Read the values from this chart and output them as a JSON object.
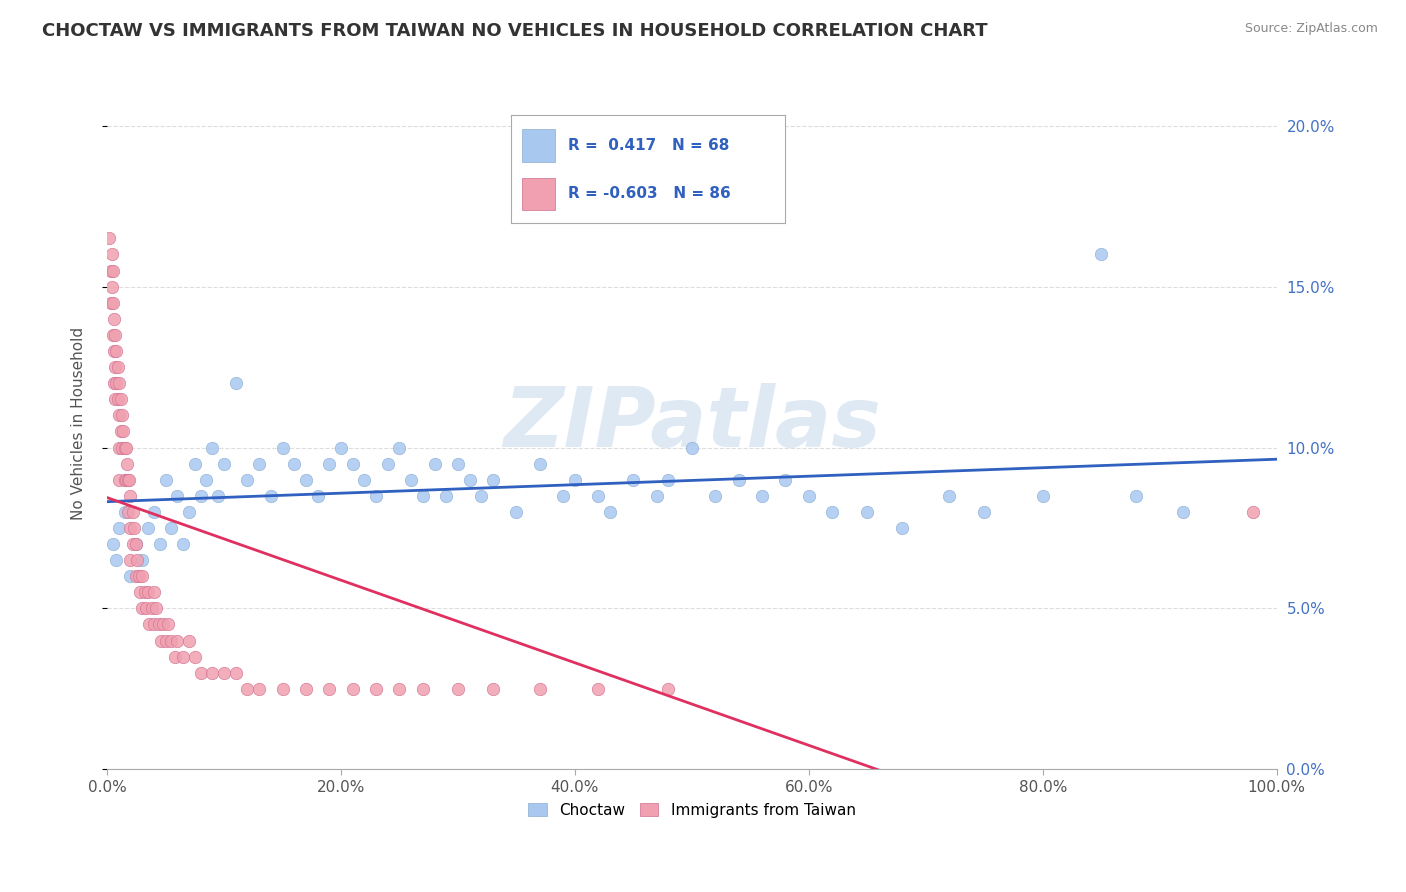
{
  "title": "CHOCTAW VS IMMIGRANTS FROM TAIWAN NO VEHICLES IN HOUSEHOLD CORRELATION CHART",
  "source": "Source: ZipAtlas.com",
  "ylabel": "No Vehicles in Household",
  "xlim": [
    0,
    1.0
  ],
  "ylim": [
    0,
    0.215
  ],
  "xticks": [
    0.0,
    0.2,
    0.4,
    0.6,
    0.8,
    1.0
  ],
  "xticklabels": [
    "0.0%",
    "20.0%",
    "40.0%",
    "60.0%",
    "80.0%",
    "100.0%"
  ],
  "yticks": [
    0.0,
    0.05,
    0.1,
    0.15,
    0.2
  ],
  "yticklabels_right": [
    "0.0%",
    "5.0%",
    "10.0%",
    "15.0%",
    "20.0%"
  ],
  "watermark": "ZIPatlas",
  "choctaw_color": "#A8C8F0",
  "taiwan_color": "#F0A0B0",
  "choctaw_line_color": "#3060C0",
  "taiwan_line_color": "#E03060",
  "choctaw_R": 0.417,
  "choctaw_N": 68,
  "taiwan_R": -0.603,
  "taiwan_N": 86,
  "legend_text1": "R =  0.417   N = 68",
  "legend_text2": "R = -0.603   N = 86",
  "choctaw_scatter_x": [
    0.005,
    0.008,
    0.01,
    0.015,
    0.02,
    0.025,
    0.03,
    0.035,
    0.04,
    0.045,
    0.05,
    0.055,
    0.06,
    0.065,
    0.07,
    0.075,
    0.08,
    0.085,
    0.09,
    0.095,
    0.1,
    0.11,
    0.12,
    0.13,
    0.14,
    0.15,
    0.16,
    0.17,
    0.18,
    0.19,
    0.2,
    0.21,
    0.22,
    0.23,
    0.24,
    0.25,
    0.26,
    0.27,
    0.28,
    0.29,
    0.3,
    0.31,
    0.32,
    0.33,
    0.35,
    0.37,
    0.39,
    0.4,
    0.42,
    0.43,
    0.45,
    0.47,
    0.48,
    0.5,
    0.52,
    0.54,
    0.56,
    0.58,
    0.6,
    0.62,
    0.65,
    0.68,
    0.72,
    0.75,
    0.8,
    0.85,
    0.88,
    0.92
  ],
  "choctaw_scatter_y": [
    0.07,
    0.065,
    0.075,
    0.08,
    0.06,
    0.07,
    0.065,
    0.075,
    0.08,
    0.07,
    0.09,
    0.075,
    0.085,
    0.07,
    0.08,
    0.095,
    0.085,
    0.09,
    0.1,
    0.085,
    0.095,
    0.12,
    0.09,
    0.095,
    0.085,
    0.1,
    0.095,
    0.09,
    0.085,
    0.095,
    0.1,
    0.095,
    0.09,
    0.085,
    0.095,
    0.1,
    0.09,
    0.085,
    0.095,
    0.085,
    0.095,
    0.09,
    0.085,
    0.09,
    0.08,
    0.095,
    0.085,
    0.09,
    0.085,
    0.08,
    0.09,
    0.085,
    0.09,
    0.1,
    0.085,
    0.09,
    0.085,
    0.09,
    0.085,
    0.08,
    0.08,
    0.075,
    0.085,
    0.08,
    0.085,
    0.16,
    0.085,
    0.08
  ],
  "taiwan_scatter_x": [
    0.002,
    0.003,
    0.003,
    0.004,
    0.004,
    0.005,
    0.005,
    0.005,
    0.006,
    0.006,
    0.006,
    0.007,
    0.007,
    0.007,
    0.008,
    0.008,
    0.009,
    0.009,
    0.01,
    0.01,
    0.01,
    0.01,
    0.012,
    0.012,
    0.013,
    0.013,
    0.014,
    0.015,
    0.015,
    0.016,
    0.016,
    0.017,
    0.018,
    0.018,
    0.019,
    0.02,
    0.02,
    0.02,
    0.022,
    0.022,
    0.023,
    0.025,
    0.025,
    0.026,
    0.027,
    0.028,
    0.03,
    0.03,
    0.032,
    0.033,
    0.035,
    0.036,
    0.038,
    0.04,
    0.04,
    0.042,
    0.044,
    0.046,
    0.048,
    0.05,
    0.052,
    0.055,
    0.058,
    0.06,
    0.065,
    0.07,
    0.075,
    0.08,
    0.09,
    0.1,
    0.11,
    0.12,
    0.13,
    0.15,
    0.17,
    0.19,
    0.21,
    0.23,
    0.25,
    0.27,
    0.3,
    0.33,
    0.37,
    0.42,
    0.48,
    0.98
  ],
  "taiwan_scatter_y": [
    0.165,
    0.155,
    0.145,
    0.16,
    0.15,
    0.155,
    0.145,
    0.135,
    0.14,
    0.13,
    0.12,
    0.135,
    0.125,
    0.115,
    0.13,
    0.12,
    0.125,
    0.115,
    0.12,
    0.11,
    0.1,
    0.09,
    0.115,
    0.105,
    0.11,
    0.1,
    0.105,
    0.1,
    0.09,
    0.1,
    0.09,
    0.095,
    0.09,
    0.08,
    0.09,
    0.085,
    0.075,
    0.065,
    0.08,
    0.07,
    0.075,
    0.07,
    0.06,
    0.065,
    0.06,
    0.055,
    0.06,
    0.05,
    0.055,
    0.05,
    0.055,
    0.045,
    0.05,
    0.055,
    0.045,
    0.05,
    0.045,
    0.04,
    0.045,
    0.04,
    0.045,
    0.04,
    0.035,
    0.04,
    0.035,
    0.04,
    0.035,
    0.03,
    0.03,
    0.03,
    0.03,
    0.025,
    0.025,
    0.025,
    0.025,
    0.025,
    0.025,
    0.025,
    0.025,
    0.025,
    0.025,
    0.025,
    0.025,
    0.025,
    0.025,
    0.08
  ]
}
